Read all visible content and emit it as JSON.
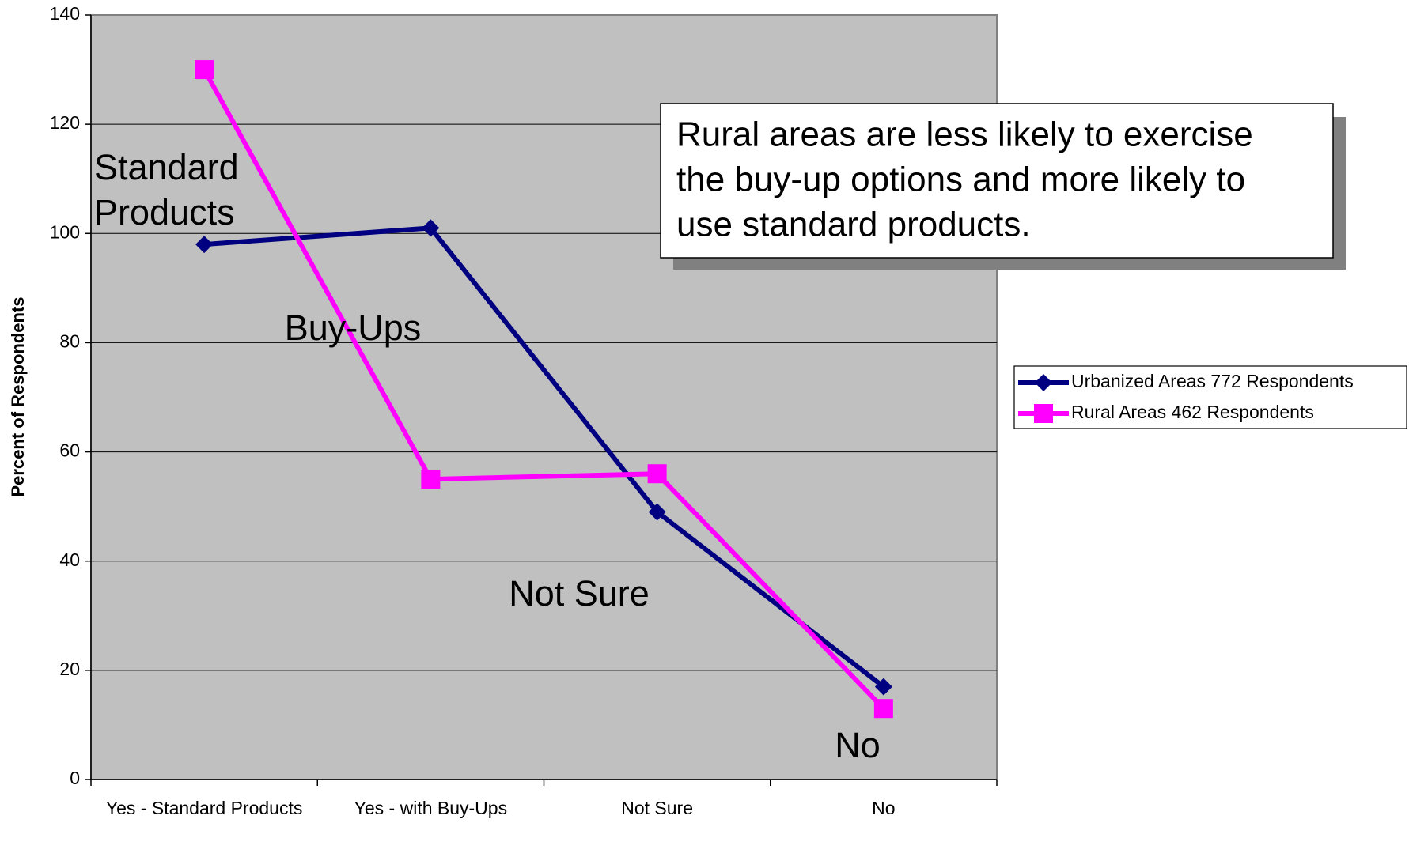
{
  "chart_data": {
    "type": "line",
    "y_axis_label": "Percent of Respondents",
    "categories": [
      "Yes - Standard Products",
      "Yes - with Buy-Ups",
      "Not Sure",
      "No"
    ],
    "series": [
      {
        "name": "Urbanized Areas 772 Respondents",
        "color": "#000080",
        "marker": "diamond",
        "values": [
          98,
          101,
          49,
          17
        ]
      },
      {
        "name": "Rural Areas 462 Respondents",
        "color": "#ff00ff",
        "marker": "square",
        "values": [
          130,
          55,
          56,
          13
        ]
      }
    ],
    "ylim": [
      0,
      140
    ],
    "yticks": [
      0,
      20,
      40,
      60,
      80,
      100,
      120,
      140
    ],
    "grid": true,
    "legend": "right",
    "annotations": [
      "Standard Products",
      "Buy-Ups",
      "Not Sure",
      "No"
    ],
    "callout": [
      "Rural areas are less likely to exercise",
      "the buy-up options and more likely to",
      "use standard products."
    ]
  }
}
